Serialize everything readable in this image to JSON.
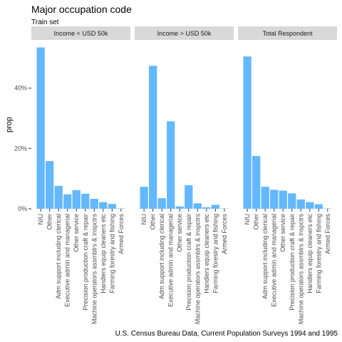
{
  "chart_data": {
    "type": "bar",
    "title": "Major occupation code",
    "subtitle": "Train set",
    "ylabel": "prop",
    "xlabel": "",
    "caption": "U.S. Census Bureau Data, Current Population Surveys 1994 and 1995",
    "ylim": [
      0,
      0.56
    ],
    "y_ticks": [
      0,
      0.2,
      0.4
    ],
    "y_tick_labels": [
      "0%",
      "20%",
      "40%"
    ],
    "grid": false,
    "bar_color": "#63b8ff",
    "strip_color": "#d9d9d9",
    "panels": [
      {
        "label": "Income < USD 50k",
        "categories": [
          "NIU",
          "Other",
          "Adm support including clerical",
          "Executive admin and managerial",
          "Other service",
          "Precision production craft & repair",
          "Machine operators assmblrs & inspctrs",
          "Handlers equip cleaners etc",
          "Farming forestry and fishing",
          "Armed Forces"
        ],
        "values": [
          0.535,
          0.158,
          0.076,
          0.048,
          0.062,
          0.05,
          0.033,
          0.022,
          0.016,
          0.0005
        ]
      },
      {
        "label": "Income > USD 50k",
        "categories": [
          "NIU",
          "Other",
          "Adm support including clerical",
          "Executive admin and managerial",
          "Other service",
          "Precision production craft & repair",
          "Machine operators assmblrs & inspctrs",
          "Handlers equip cleaners etc",
          "Farming forestry and fishing",
          "Armed Forces"
        ],
        "values": [
          0.073,
          0.474,
          0.035,
          0.29,
          0.008,
          0.078,
          0.018,
          0.005,
          0.013,
          0.0005
        ]
      },
      {
        "label": "Total Respondent",
        "categories": [
          "NIU",
          "Other",
          "Adm support including clerical",
          "Executive admin and managerial",
          "Other service",
          "Precision production craft & repair",
          "Machine operators assmblrs & inspctrs",
          "Handlers equip cleaners etc",
          "Farming forestry and fishing",
          "Armed Forces"
        ],
        "values": [
          0.505,
          0.175,
          0.073,
          0.063,
          0.06,
          0.051,
          0.031,
          0.022,
          0.015,
          0.0005
        ]
      }
    ]
  }
}
